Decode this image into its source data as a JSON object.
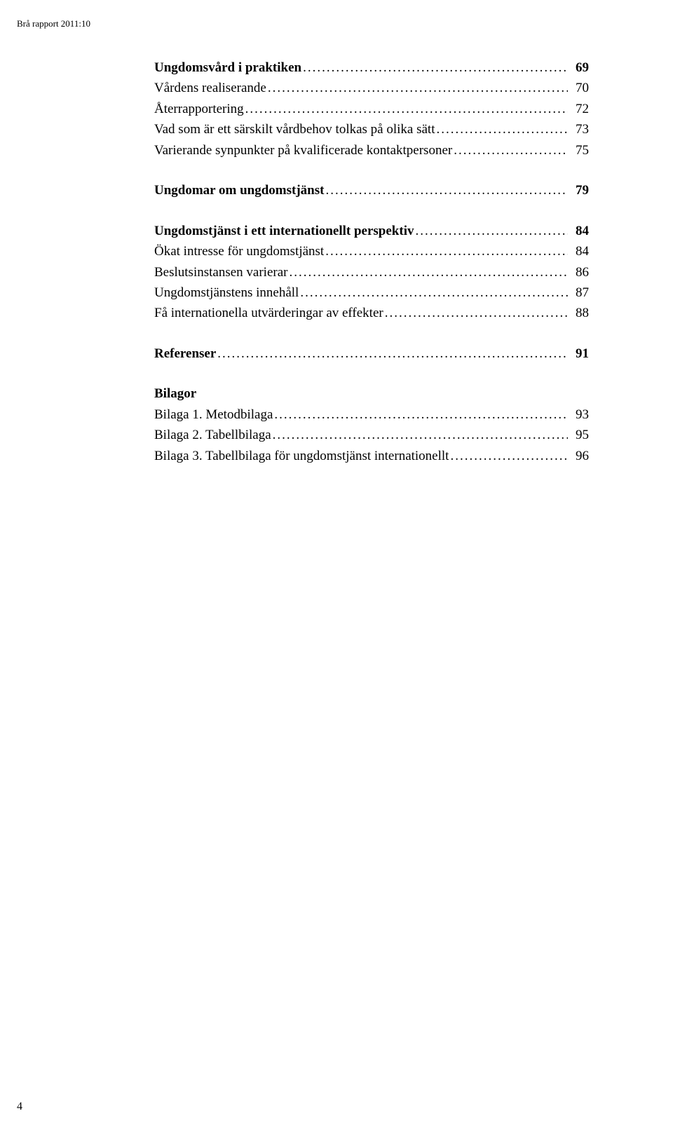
{
  "report_label": "Brå rapport 2011:10",
  "page_number": "4",
  "toc": {
    "section1": {
      "title": {
        "label": "Ungdomsvård i praktiken",
        "page": "69"
      },
      "items": [
        {
          "label": "Vårdens realiserande",
          "page": "70"
        },
        {
          "label": "Återrapportering",
          "page": "72"
        },
        {
          "label": "Vad som är ett särskilt vårdbehov tolkas på olika sätt",
          "page": "73"
        },
        {
          "label": "Varierande synpunkter på kvalificerade kontaktpersoner",
          "page": "75"
        }
      ]
    },
    "section2": {
      "title": {
        "label": "Ungdomar om ungdomstjänst",
        "page": "79"
      }
    },
    "section3": {
      "title": {
        "label": "Ungdomstjänst i ett internationellt perspektiv",
        "page": "84"
      },
      "items": [
        {
          "label": "Ökat intresse för ungdomstjänst",
          "page": "84"
        },
        {
          "label": "Beslutsinstansen varierar",
          "page": "86"
        },
        {
          "label": "Ungdomstjänstens innehåll",
          "page": "87"
        },
        {
          "label": "Få internationella utvärderingar av effekter",
          "page": "88"
        }
      ]
    },
    "referenser": {
      "title": {
        "label": "Referenser",
        "page": "91"
      }
    },
    "bilagor": {
      "heading": "Bilagor",
      "items": [
        {
          "label": "Bilaga 1. Metodbilaga",
          "page": "93"
        },
        {
          "label": "Bilaga 2. Tabellbilaga",
          "page": "95"
        },
        {
          "label": "Bilaga 3. Tabellbilaga för ungdomstjänst internationellt",
          "page": "96"
        }
      ]
    }
  }
}
